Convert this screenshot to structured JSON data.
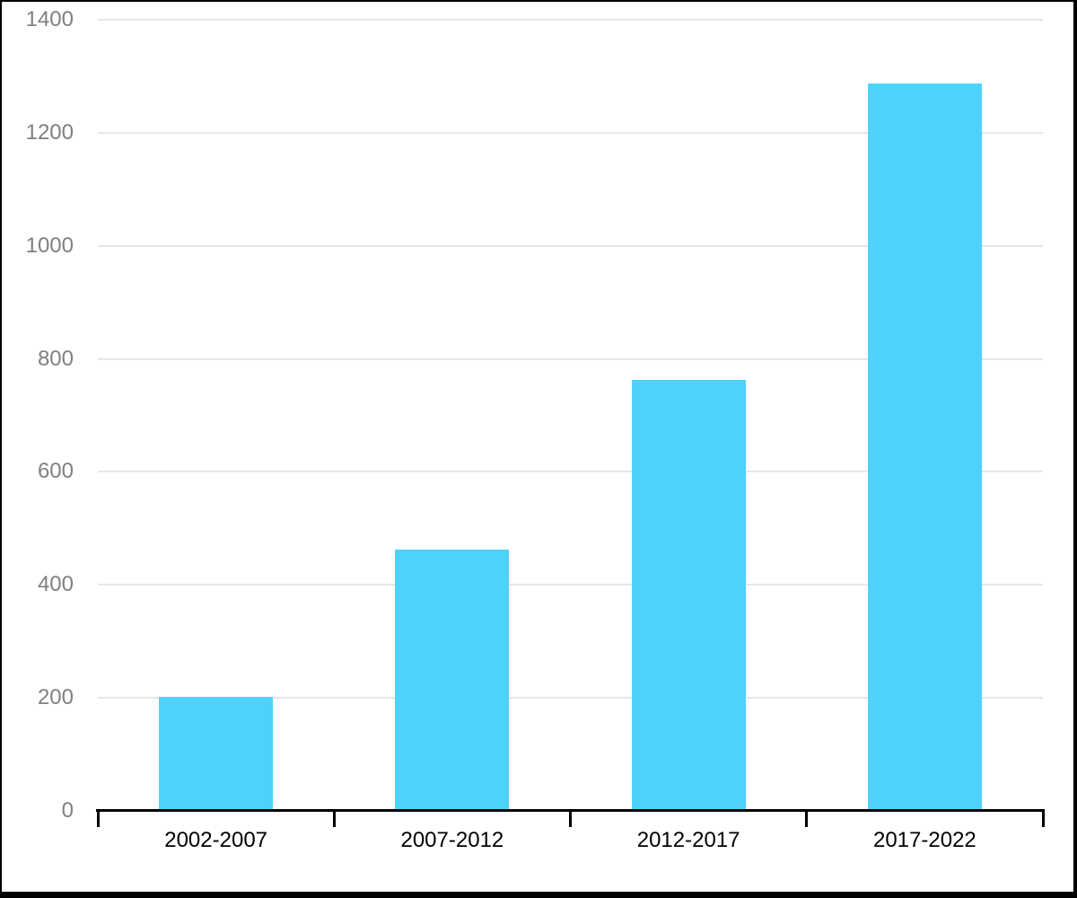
{
  "chart_data": {
    "type": "bar",
    "title": "",
    "xlabel": "",
    "ylabel": "",
    "categories": [
      "2002-2007",
      "2007-2012",
      "2012-2017",
      "2017-2022"
    ],
    "values": [
      202,
      462,
      762,
      1287
    ],
    "y_ticks": [
      0,
      200,
      400,
      600,
      800,
      1000,
      1200,
      1400
    ],
    "ylim": [
      0,
      1400
    ],
    "grid": "horizontal",
    "legend": "none",
    "colors": {
      "bar_fill": "#4dd2fa",
      "gridline": "#e6e6e6",
      "y_tick_label": "#808080",
      "x_tick_label": "#000000",
      "axis_line": "#000000",
      "frame_border": "#000000",
      "background": "#ffffff"
    }
  }
}
